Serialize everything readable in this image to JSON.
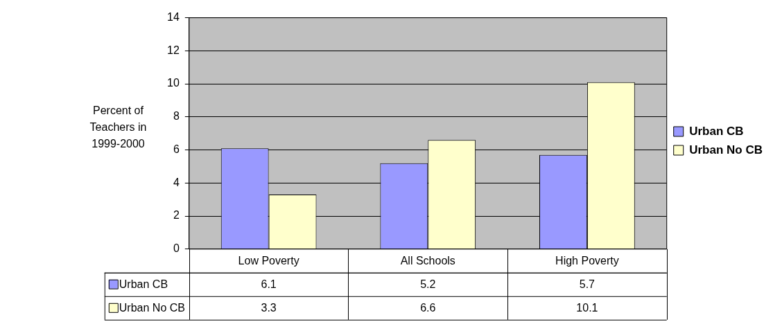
{
  "chart_data": {
    "type": "bar",
    "ylabel": "Percent of Teachers in 1999-2000",
    "categories": [
      "Low Poverty",
      "All Schools",
      "High Poverty"
    ],
    "series": [
      {
        "name": "Urban CB",
        "color": "#9999ff",
        "values": [
          6.1,
          5.2,
          5.7
        ]
      },
      {
        "name": "Urban No CB",
        "color": "#ffffcc",
        "values": [
          3.3,
          6.6,
          10.1
        ]
      }
    ],
    "ylim": [
      0,
      14
    ],
    "yticks": [
      0,
      2,
      4,
      6,
      8,
      10,
      12,
      14
    ],
    "grid": "y",
    "legend": "right",
    "data_labels": true
  }
}
